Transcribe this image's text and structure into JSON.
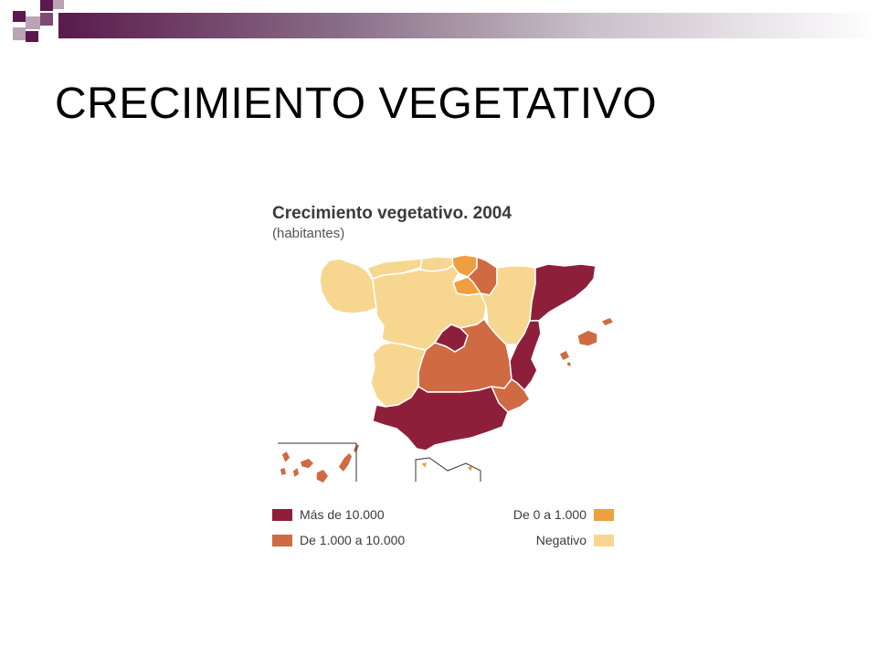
{
  "slide": {
    "title": "CRECIMIENTO VEGETATIVO"
  },
  "map": {
    "title": "Crecimiento vegetativo. 2004",
    "subtitle": "(habitantes)",
    "legend": [
      {
        "label": "Más de 10.000",
        "color": "#8e1f3b"
      },
      {
        "label": "De 1.000 a 10.000",
        "color": "#cf6a43"
      },
      {
        "label": "De 0 a 1.000",
        "color": "#ef9f3f"
      },
      {
        "label": "Negativo",
        "color": "#f7d790"
      }
    ],
    "regions": [
      {
        "name": "Galicia",
        "category": "Negativo"
      },
      {
        "name": "Asturias",
        "category": "Negativo"
      },
      {
        "name": "Cantabria",
        "category": "Negativo"
      },
      {
        "name": "País Vasco",
        "category": "De 0 a 1.000"
      },
      {
        "name": "Navarra",
        "category": "De 1.000 a 10.000"
      },
      {
        "name": "La Rioja",
        "category": "De 0 a 1.000"
      },
      {
        "name": "Aragón",
        "category": "Negativo"
      },
      {
        "name": "Cataluña",
        "category": "Más de 10.000"
      },
      {
        "name": "Castilla y León",
        "category": "Negativo"
      },
      {
        "name": "Madrid",
        "category": "Más de 10.000"
      },
      {
        "name": "Castilla-La Mancha",
        "category": "De 1.000 a 10.000"
      },
      {
        "name": "Extremadura",
        "category": "Negativo"
      },
      {
        "name": "Comunidad Valenciana",
        "category": "Más de 10.000"
      },
      {
        "name": "Región de Murcia",
        "category": "De 1.000 a 10.000"
      },
      {
        "name": "Andalucía",
        "category": "Más de 10.000"
      },
      {
        "name": "Islas Baleares",
        "category": "De 1.000 a 10.000"
      },
      {
        "name": "Islas Canarias",
        "category": "De 1.000 a 10.000"
      },
      {
        "name": "Ceuta",
        "category": "De 0 a 1.000"
      },
      {
        "name": "Melilla",
        "category": "De 0 a 1.000"
      }
    ]
  }
}
